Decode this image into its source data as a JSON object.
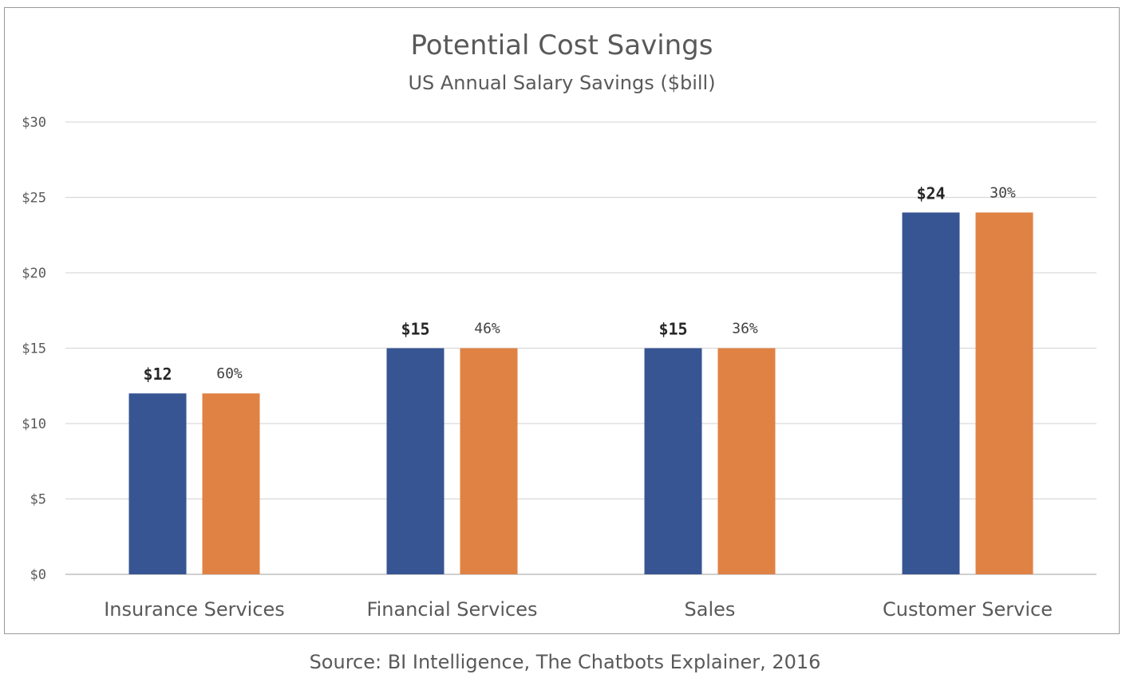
{
  "chart_data": {
    "type": "bar",
    "title": "Potential Cost Savings",
    "subtitle": "US Annual Salary Savings ($bill)",
    "categories": [
      "Insurance Services",
      "Financial Services",
      "Sales",
      "Customer Service"
    ],
    "series": [
      {
        "values": [
          12,
          15,
          15,
          24
        ],
        "labels": [
          "$12",
          "$15",
          "$15",
          "$24"
        ],
        "color": "#375592"
      },
      {
        "values": [
          12,
          15,
          15,
          24
        ],
        "labels": [
          "60%",
          "46%",
          "36%",
          "30%"
        ],
        "color": "#E08244"
      }
    ],
    "y_ticks": [
      0,
      5,
      10,
      15,
      20,
      25,
      30
    ],
    "y_tick_labels": [
      "$0",
      "$5",
      "$10",
      "$15",
      "$20",
      "$25",
      "$30"
    ],
    "ylim": [
      0,
      30
    ],
    "grid": true,
    "legend": "none"
  },
  "source": "Source: BI Intelligence, The Chatbots Explainer, 2016"
}
